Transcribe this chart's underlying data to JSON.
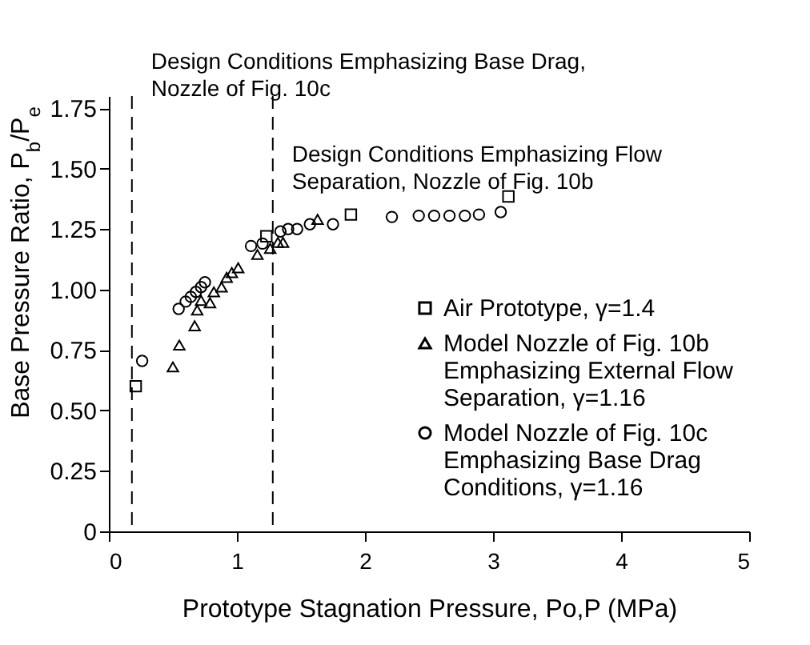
{
  "chart_data": {
    "type": "scatter",
    "xlabel": "Prototype Stagnation Pressure, Po,P (MPa)",
    "ylabel": "Base Pressure Ratio, P$_{b}$/P$_{e}$",
    "xlim": [
      0,
      5
    ],
    "xticks": [
      0,
      1,
      2,
      3,
      4,
      5
    ],
    "ylim": [
      0,
      1.8
    ],
    "yticks": [
      0,
      0.25,
      {
        "value": 0.5,
        "label": "0.50"
      },
      0.75,
      {
        "value": 1,
        "label": "1.00"
      },
      1.25,
      {
        "value": 1.5,
        "label": "1.50"
      },
      1.75
    ],
    "grid": false,
    "legend": "right",
    "series": [
      {
        "name": "Air Prototype, γ=1.4",
        "color": "#000000",
        "marker": "square",
        "x": [
          0.21,
          1.23,
          1.89,
          3.12
        ],
        "values": [
          0.6,
          1.22,
          1.31,
          1.385
        ]
      },
      {
        "name": "Model Nozzle of Fig. 10b\nEmphasizing External Flow\nSeparation, γ=1.16",
        "color": "#000000",
        "marker": "triangle",
        "x": [
          0.5,
          0.55,
          0.67,
          0.69,
          0.72,
          0.79,
          0.82,
          0.88,
          0.92,
          0.96,
          1.01,
          1.16,
          1.26,
          1.32,
          1.36,
          1.63
        ],
        "values": [
          0.68,
          0.77,
          0.85,
          0.915,
          0.955,
          0.945,
          0.99,
          1.01,
          1.05,
          1.07,
          1.09,
          1.145,
          1.17,
          1.195,
          1.195,
          1.29
        ]
      },
      {
        "name": "Model Nozzle of Fig. 10c\nEmphasizing Base Drag\nConditions, γ=1.16",
        "color": "#000000",
        "marker": "circle",
        "x": [
          0.26,
          0.545,
          0.6,
          0.64,
          0.68,
          0.72,
          0.75,
          1.11,
          1.2,
          1.34,
          1.4,
          1.47,
          1.57,
          1.75,
          2.21,
          2.42,
          2.54,
          2.66,
          2.78,
          2.89,
          3.06
        ],
        "values": [
          0.705,
          0.92,
          0.95,
          0.97,
          0.99,
          1.01,
          1.03,
          1.18,
          1.19,
          1.24,
          1.25,
          1.25,
          1.27,
          1.27,
          1.3,
          1.305,
          1.305,
          1.305,
          1.305,
          1.31,
          1.32
        ]
      }
    ],
    "ref_lines": [
      {
        "axis": "x",
        "value": 0.18,
        "label": "Design Conditions Emphasizing Base Drag,\nNozzle of Fig. 10c",
        "line_style": "dashed"
      },
      {
        "axis": "x",
        "value": 1.28,
        "label": "Design Conditions Emphasizing Flow\nSeparation, Nozzle of Fig. 10b",
        "line_style": "dashed"
      }
    ]
  }
}
